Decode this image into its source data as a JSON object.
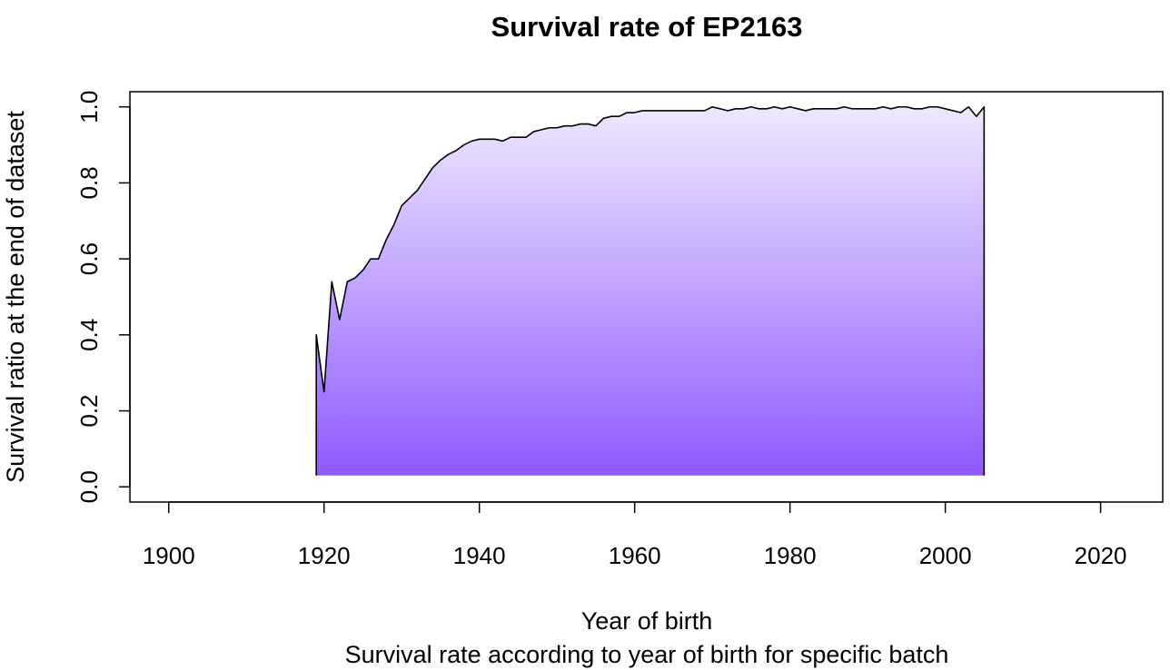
{
  "chart_data": {
    "type": "area",
    "title": "Survival rate of EP2163",
    "xlabel": "Year of birth",
    "subtitle": "Survival rate according to year of birth for specific batch",
    "ylabel": "Survival ratio at the end of dataset",
    "xlim": [
      1895,
      2028
    ],
    "ylim": [
      -0.04,
      1.04
    ],
    "area_baseline": 0.03,
    "x_ticks": [
      1900,
      1920,
      1940,
      1960,
      1980,
      2000,
      2020
    ],
    "x_tick_labels": [
      "1900",
      "1920",
      "1940",
      "1960",
      "1980",
      "2000",
      "2020"
    ],
    "y_ticks": [
      0.0,
      0.2,
      0.4,
      0.6,
      0.8,
      1.0
    ],
    "y_tick_labels": [
      "0.0",
      "0.2",
      "0.4",
      "0.6",
      "0.8",
      "1.0"
    ],
    "grid": false,
    "gradient_colors": {
      "top": "#efe8fd",
      "bottom": "#8f5aff"
    },
    "line_color": "#000000",
    "x": [
      1919,
      1920,
      1921,
      1922,
      1923,
      1924,
      1925,
      1926,
      1927,
      1928,
      1929,
      1930,
      1931,
      1932,
      1933,
      1934,
      1935,
      1936,
      1937,
      1938,
      1939,
      1940,
      1941,
      1942,
      1943,
      1944,
      1945,
      1946,
      1947,
      1948,
      1949,
      1950,
      1951,
      1952,
      1953,
      1954,
      1955,
      1956,
      1957,
      1958,
      1959,
      1960,
      1961,
      1962,
      1963,
      1964,
      1965,
      1966,
      1967,
      1968,
      1969,
      1970,
      1971,
      1972,
      1973,
      1974,
      1975,
      1976,
      1977,
      1978,
      1979,
      1980,
      1981,
      1982,
      1983,
      1984,
      1985,
      1986,
      1987,
      1988,
      1989,
      1990,
      1991,
      1992,
      1993,
      1994,
      1995,
      1996,
      1997,
      1998,
      1999,
      2000,
      2001,
      2002,
      2003,
      2004,
      2005
    ],
    "y": [
      0.4,
      0.25,
      0.54,
      0.44,
      0.54,
      0.55,
      0.57,
      0.6,
      0.6,
      0.65,
      0.69,
      0.74,
      0.76,
      0.78,
      0.81,
      0.84,
      0.86,
      0.875,
      0.885,
      0.9,
      0.91,
      0.915,
      0.915,
      0.915,
      0.91,
      0.92,
      0.92,
      0.92,
      0.935,
      0.94,
      0.945,
      0.945,
      0.95,
      0.95,
      0.955,
      0.955,
      0.95,
      0.97,
      0.975,
      0.975,
      0.985,
      0.985,
      0.99,
      0.99,
      0.99,
      0.99,
      0.99,
      0.99,
      0.99,
      0.99,
      0.99,
      1.0,
      0.995,
      0.99,
      0.995,
      0.995,
      1.0,
      0.995,
      0.995,
      1.0,
      0.995,
      1.0,
      0.995,
      0.99,
      0.995,
      0.995,
      0.995,
      0.995,
      1.0,
      0.995,
      0.995,
      0.995,
      0.995,
      1.0,
      0.995,
      1.0,
      1.0,
      0.995,
      0.995,
      1.0,
      1.0,
      0.995,
      0.99,
      0.985,
      1.0,
      0.975,
      1.0
    ]
  }
}
